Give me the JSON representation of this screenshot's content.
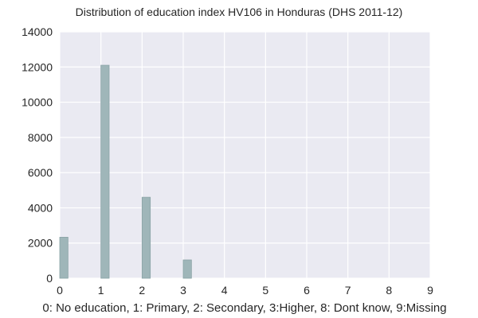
{
  "chart_data": {
    "type": "bar",
    "title": "Distribution of education index HV106 in Honduras (DHS 2011-12)",
    "xlabel": "0: No education, 1: Primary, 2: Secondary, 3:Higher, 8: Dont know, 9:Missing",
    "ylabel": "",
    "xlim": [
      0,
      9
    ],
    "ylim": [
      0,
      14000
    ],
    "x_ticks": [
      0,
      1,
      2,
      3,
      4,
      5,
      6,
      7,
      8,
      9
    ],
    "y_ticks": [
      0,
      2000,
      4000,
      6000,
      8000,
      10000,
      12000,
      14000
    ],
    "bin_width": 0.2,
    "bars": [
      {
        "x": 0,
        "value": 2330
      },
      {
        "x": 1,
        "value": 12100
      },
      {
        "x": 2,
        "value": 4600
      },
      {
        "x": 3,
        "value": 1040
      }
    ],
    "grid": true,
    "colors": {
      "background": "#eaeaf2",
      "grid": "#ffffff",
      "bar_fill": "#9fb6b9",
      "bar_edge": "#8aa3a6"
    }
  }
}
